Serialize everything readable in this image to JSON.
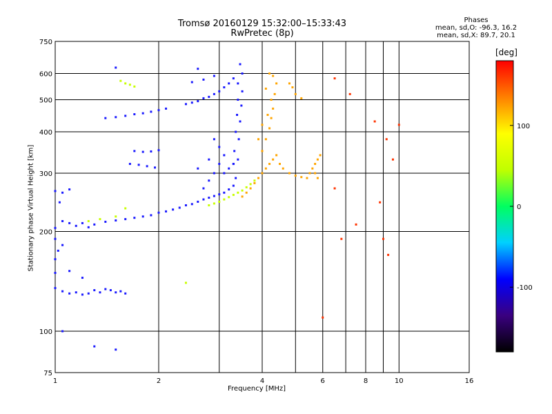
{
  "chart_data": {
    "type": "scatter",
    "title": "Tromsø 20160129 15:32:00–15:33:43",
    "subtitle": "RwPretec (8p)",
    "xlabel": "Frequency [MHz]",
    "ylabel": "Stationary phase Virtual Height [km]",
    "xscale": "log",
    "yscale": "log",
    "xlim": [
      1,
      16
    ],
    "ylim": [
      75,
      750
    ],
    "x_ticks": [
      1,
      2,
      4,
      6,
      8,
      10,
      16
    ],
    "x_minor_ticks": [
      3,
      5,
      7,
      9
    ],
    "y_ticks": [
      75,
      100,
      200,
      300,
      400,
      500,
      600,
      750
    ],
    "grid": true,
    "colorbar": {
      "label": "[deg]",
      "range": [
        -180,
        180
      ],
      "ticks": [
        100,
        0,
        -100
      ],
      "colors": [
        "#000000",
        "#3a0080",
        "#0000ff",
        "#00d0ff",
        "#00ff60",
        "#c0ff00",
        "#ffff00",
        "#ff8000",
        "#ff0000"
      ]
    },
    "stats": {
      "header": "Phases",
      "line_o": "mean, sd,O: -96.3, 16.2",
      "line_x": "mean, sd,X:  89.7, 20.1"
    },
    "series": [
      {
        "mode": "O",
        "color": "#1a1aff",
        "points": [
          [
            1.0,
            265
          ],
          [
            1.05,
            262
          ],
          [
            1.1,
            268
          ],
          [
            1.03,
            245
          ],
          [
            1.0,
            205
          ],
          [
            1.05,
            215
          ],
          [
            1.1,
            212
          ],
          [
            1.15,
            208
          ],
          [
            1.2,
            212
          ],
          [
            1.25,
            206
          ],
          [
            1.3,
            210
          ],
          [
            1.4,
            214
          ],
          [
            1.5,
            216
          ],
          [
            1.6,
            218
          ],
          [
            1.7,
            220
          ],
          [
            1.8,
            222
          ],
          [
            1.9,
            224
          ],
          [
            2.0,
            228
          ],
          [
            2.1,
            230
          ],
          [
            2.2,
            233
          ],
          [
            2.3,
            236
          ],
          [
            2.4,
            240
          ],
          [
            2.5,
            242
          ],
          [
            2.6,
            246
          ],
          [
            2.7,
            250
          ],
          [
            2.8,
            253
          ],
          [
            2.9,
            256
          ],
          [
            3.0,
            259
          ],
          [
            3.1,
            262
          ],
          [
            3.2,
            268
          ],
          [
            3.3,
            275
          ],
          [
            3.35,
            290
          ],
          [
            3.4,
            330
          ],
          [
            3.42,
            380
          ],
          [
            3.45,
            430
          ],
          [
            3.48,
            480
          ],
          [
            3.5,
            530
          ],
          [
            3.5,
            600
          ],
          [
            3.45,
            640
          ],
          [
            3.4,
            560
          ],
          [
            3.4,
            500
          ],
          [
            3.38,
            450
          ],
          [
            3.35,
            400
          ],
          [
            3.32,
            350
          ],
          [
            3.3,
            320
          ],
          [
            1.0,
            135
          ],
          [
            1.05,
            132
          ],
          [
            1.1,
            130
          ],
          [
            1.15,
            131
          ],
          [
            1.2,
            129
          ],
          [
            1.25,
            130
          ],
          [
            1.3,
            133
          ],
          [
            1.35,
            131
          ],
          [
            1.4,
            134
          ],
          [
            1.45,
            133
          ],
          [
            1.5,
            131
          ],
          [
            1.55,
            132
          ],
          [
            1.6,
            130
          ],
          [
            1.0,
            150
          ],
          [
            1.1,
            152
          ],
          [
            1.2,
            145
          ],
          [
            1.0,
            190
          ],
          [
            1.05,
            182
          ],
          [
            1.02,
            175
          ],
          [
            1.0,
            165
          ],
          [
            1.4,
            440
          ],
          [
            1.5,
            443
          ],
          [
            1.6,
            447
          ],
          [
            1.7,
            452
          ],
          [
            1.8,
            455
          ],
          [
            1.9,
            460
          ],
          [
            2.0,
            465
          ],
          [
            2.1,
            470
          ],
          [
            2.4,
            485
          ],
          [
            2.5,
            490
          ],
          [
            2.6,
            495
          ],
          [
            2.7,
            505
          ],
          [
            2.8,
            510
          ],
          [
            2.9,
            520
          ],
          [
            3.0,
            530
          ],
          [
            3.1,
            545
          ],
          [
            3.2,
            560
          ],
          [
            3.3,
            580
          ],
          [
            2.5,
            565
          ],
          [
            2.7,
            575
          ],
          [
            2.9,
            590
          ],
          [
            2.7,
            270
          ],
          [
            2.8,
            285
          ],
          [
            2.9,
            300
          ],
          [
            3.0,
            320
          ],
          [
            3.1,
            340
          ],
          [
            2.6,
            310
          ],
          [
            2.8,
            330
          ],
          [
            3.0,
            360
          ],
          [
            2.9,
            380
          ],
          [
            3.1,
            300
          ],
          [
            3.2,
            310
          ],
          [
            3.3,
            320
          ],
          [
            1.7,
            350
          ],
          [
            1.8,
            348
          ],
          [
            1.9,
            349
          ],
          [
            2.0,
            352
          ],
          [
            1.65,
            320
          ],
          [
            1.75,
            318
          ],
          [
            1.85,
            315
          ],
          [
            1.95,
            312
          ],
          [
            1.5,
            625
          ],
          [
            2.6,
            620
          ],
          [
            1.3,
            90
          ],
          [
            1.5,
            88
          ],
          [
            1.05,
            100
          ]
        ]
      },
      {
        "mode": "X",
        "color": "#ffa500",
        "points": [
          [
            3.5,
            255
          ],
          [
            3.6,
            262
          ],
          [
            3.7,
            270
          ],
          [
            3.8,
            280
          ],
          [
            3.9,
            290
          ],
          [
            4.0,
            300
          ],
          [
            4.1,
            310
          ],
          [
            4.2,
            320
          ],
          [
            4.3,
            330
          ],
          [
            4.4,
            340
          ],
          [
            4.5,
            320
          ],
          [
            4.6,
            310
          ],
          [
            4.8,
            300
          ],
          [
            5.0,
            295
          ],
          [
            5.2,
            292
          ],
          [
            5.4,
            290
          ],
          [
            4.0,
            350
          ],
          [
            4.1,
            380
          ],
          [
            4.2,
            410
          ],
          [
            4.25,
            440
          ],
          [
            4.3,
            470
          ],
          [
            4.35,
            520
          ],
          [
            4.4,
            560
          ],
          [
            4.3,
            590
          ],
          [
            4.2,
            600
          ],
          [
            4.1,
            540
          ],
          [
            4.0,
            420
          ],
          [
            3.9,
            380
          ],
          [
            4.15,
            450
          ],
          [
            4.25,
            500
          ],
          [
            5.5,
            300
          ],
          [
            5.6,
            310
          ],
          [
            5.7,
            320
          ],
          [
            5.8,
            330
          ],
          [
            5.9,
            340
          ],
          [
            5.7,
            300
          ],
          [
            5.8,
            290
          ],
          [
            4.8,
            560
          ],
          [
            4.9,
            545
          ],
          [
            5.0,
            520
          ],
          [
            5.2,
            505
          ]
        ]
      },
      {
        "mode": "X-low",
        "color": "#c8ff00",
        "points": [
          [
            2.8,
            240
          ],
          [
            2.9,
            243
          ],
          [
            3.0,
            246
          ],
          [
            3.1,
            250
          ],
          [
            3.2,
            254
          ],
          [
            3.3,
            258
          ],
          [
            3.4,
            262
          ],
          [
            3.5,
            266
          ],
          [
            3.6,
            272
          ],
          [
            3.7,
            278
          ],
          [
            3.8,
            285
          ],
          [
            1.55,
            570
          ],
          [
            1.6,
            560
          ],
          [
            1.65,
            555
          ],
          [
            1.7,
            548
          ],
          [
            1.25,
            215
          ],
          [
            1.35,
            218
          ],
          [
            1.5,
            222
          ],
          [
            1.6,
            235
          ],
          [
            2.4,
            140
          ]
        ]
      },
      {
        "mode": "scattered",
        "color": "#ff3300",
        "points": [
          [
            6.5,
            580
          ],
          [
            7.2,
            520
          ],
          [
            8.5,
            430
          ],
          [
            9.2,
            380
          ],
          [
            6.5,
            270
          ],
          [
            6.8,
            190
          ],
          [
            7.5,
            210
          ],
          [
            8.8,
            245
          ],
          [
            9.0,
            190
          ],
          [
            9.3,
            170
          ],
          [
            10.0,
            420
          ],
          [
            9.6,
            330
          ],
          [
            6.0,
            110
          ]
        ]
      }
    ]
  }
}
